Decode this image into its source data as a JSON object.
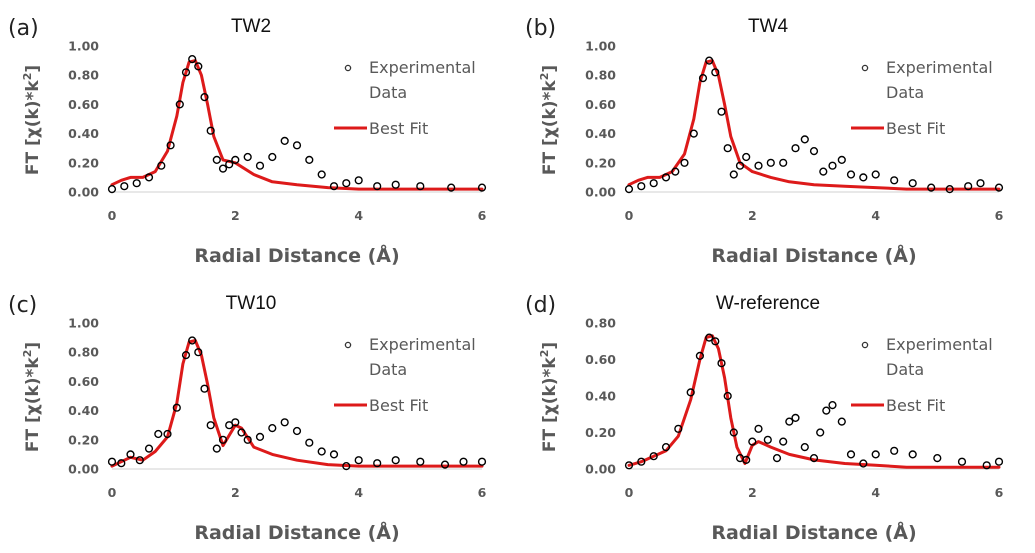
{
  "colors": {
    "experimental": "#000000",
    "fit": "#dd1a1a",
    "text": "#595959"
  },
  "chart_data": [
    {
      "type": "scatter",
      "panel_label": "(a)",
      "title": "TW2",
      "xlabel": "Radial Distance (Å)",
      "ylabel_main": "FT [χ(k)*k",
      "ylabel_sup": "2",
      "ylabel_tail": "]",
      "xlim": [
        0,
        6
      ],
      "ylim": [
        0,
        1.0
      ],
      "xticks": [
        "0",
        "2",
        "4",
        "6"
      ],
      "yticks": [
        "0.00",
        "0.20",
        "0.40",
        "0.60",
        "0.80",
        "1.00"
      ],
      "legend": {
        "experimental": [
          "Experimental",
          "Data"
        ],
        "fit": "Best Fit"
      },
      "series": [
        {
          "name": "Experimental Data",
          "style": "markers",
          "x": [
            0,
            0.2,
            0.4,
            0.6,
            0.8,
            0.95,
            1.1,
            1.2,
            1.3,
            1.4,
            1.5,
            1.6,
            1.7,
            1.8,
            1.9,
            2.0,
            2.2,
            2.4,
            2.6,
            2.8,
            3.0,
            3.2,
            3.4,
            3.6,
            3.8,
            4.0,
            4.3,
            4.6,
            5.0,
            5.5,
            6.0
          ],
          "y": [
            0.02,
            0.04,
            0.06,
            0.1,
            0.18,
            0.32,
            0.6,
            0.82,
            0.91,
            0.86,
            0.65,
            0.42,
            0.22,
            0.16,
            0.19,
            0.22,
            0.24,
            0.18,
            0.24,
            0.35,
            0.32,
            0.22,
            0.12,
            0.04,
            0.06,
            0.08,
            0.04,
            0.05,
            0.04,
            0.03,
            0.03
          ]
        },
        {
          "name": "Best Fit",
          "style": "line",
          "x": [
            0,
            0.15,
            0.3,
            0.5,
            0.7,
            0.9,
            1.05,
            1.15,
            1.25,
            1.35,
            1.45,
            1.55,
            1.65,
            1.8,
            2.0,
            2.3,
            2.6,
            3.0,
            3.5,
            4.0,
            4.5,
            5.0,
            6.0
          ],
          "y": [
            0.05,
            0.08,
            0.1,
            0.1,
            0.14,
            0.28,
            0.52,
            0.75,
            0.89,
            0.9,
            0.8,
            0.6,
            0.38,
            0.22,
            0.2,
            0.12,
            0.07,
            0.05,
            0.03,
            0.02,
            0.02,
            0.02,
            0.02
          ]
        }
      ]
    },
    {
      "type": "scatter",
      "panel_label": "(b)",
      "title": "TW4",
      "xlabel": "Radial Distance (Å)",
      "ylabel_main": "FT [χ(k)*k",
      "ylabel_sup": "2",
      "ylabel_tail": "]",
      "xlim": [
        0,
        6
      ],
      "ylim": [
        0,
        1.0
      ],
      "xticks": [
        "0",
        "2",
        "4",
        "6"
      ],
      "yticks": [
        "0.00",
        "0.20",
        "0.40",
        "0.60",
        "0.80",
        "1.00"
      ],
      "legend": {
        "experimental": [
          "Experimental",
          "Data"
        ],
        "fit": "Best Fit"
      },
      "series": [
        {
          "name": "Experimental Data",
          "style": "markers",
          "x": [
            0,
            0.2,
            0.4,
            0.6,
            0.75,
            0.9,
            1.05,
            1.2,
            1.3,
            1.4,
            1.5,
            1.6,
            1.7,
            1.8,
            1.9,
            2.1,
            2.3,
            2.5,
            2.7,
            2.85,
            3.0,
            3.15,
            3.3,
            3.45,
            3.6,
            3.8,
            4.0,
            4.3,
            4.6,
            4.9,
            5.2,
            5.5,
            5.7,
            6.0
          ],
          "y": [
            0.02,
            0.04,
            0.06,
            0.1,
            0.14,
            0.2,
            0.4,
            0.78,
            0.9,
            0.82,
            0.55,
            0.3,
            0.12,
            0.18,
            0.24,
            0.18,
            0.2,
            0.2,
            0.3,
            0.36,
            0.28,
            0.14,
            0.18,
            0.22,
            0.12,
            0.1,
            0.12,
            0.08,
            0.06,
            0.03,
            0.02,
            0.04,
            0.06,
            0.03
          ]
        },
        {
          "name": "Best Fit",
          "style": "line",
          "x": [
            0,
            0.15,
            0.3,
            0.5,
            0.7,
            0.9,
            1.05,
            1.15,
            1.25,
            1.35,
            1.45,
            1.55,
            1.65,
            1.8,
            2.0,
            2.3,
            2.6,
            3.0,
            3.5,
            4.0,
            4.5,
            5.0,
            6.0
          ],
          "y": [
            0.05,
            0.08,
            0.1,
            0.1,
            0.14,
            0.26,
            0.5,
            0.75,
            0.89,
            0.9,
            0.8,
            0.6,
            0.38,
            0.2,
            0.14,
            0.1,
            0.07,
            0.05,
            0.04,
            0.03,
            0.02,
            0.02,
            0.02
          ]
        }
      ]
    },
    {
      "type": "scatter",
      "panel_label": "(c)",
      "title": "TW10",
      "xlabel": "Radial Distance (Å)",
      "ylabel_main": "FT [χ(k)*k",
      "ylabel_sup": "2",
      "ylabel_tail": "]",
      "xlim": [
        0,
        6
      ],
      "ylim": [
        0,
        1.0
      ],
      "xticks": [
        "0",
        "2",
        "4",
        "6"
      ],
      "yticks": [
        "0.00",
        "0.20",
        "0.40",
        "0.60",
        "0.80",
        "1.00"
      ],
      "legend": {
        "experimental": [
          "Experimental",
          "Data"
        ],
        "fit": "Best Fit"
      },
      "series": [
        {
          "name": "Experimental Data",
          "style": "markers",
          "x": [
            0,
            0.15,
            0.3,
            0.45,
            0.6,
            0.75,
            0.9,
            1.05,
            1.2,
            1.3,
            1.4,
            1.5,
            1.6,
            1.7,
            1.8,
            1.9,
            2.0,
            2.1,
            2.2,
            2.4,
            2.6,
            2.8,
            3.0,
            3.2,
            3.4,
            3.6,
            3.8,
            4.0,
            4.3,
            4.6,
            5.0,
            5.4,
            5.7,
            6.0
          ],
          "y": [
            0.05,
            0.04,
            0.1,
            0.06,
            0.14,
            0.24,
            0.24,
            0.42,
            0.78,
            0.88,
            0.8,
            0.55,
            0.3,
            0.14,
            0.2,
            0.3,
            0.32,
            0.25,
            0.2,
            0.22,
            0.28,
            0.32,
            0.26,
            0.18,
            0.12,
            0.1,
            0.02,
            0.06,
            0.04,
            0.06,
            0.05,
            0.03,
            0.05,
            0.05
          ]
        },
        {
          "name": "Best Fit",
          "style": "line",
          "x": [
            0,
            0.15,
            0.3,
            0.5,
            0.7,
            0.9,
            1.05,
            1.15,
            1.25,
            1.35,
            1.45,
            1.55,
            1.65,
            1.8,
            2.0,
            2.1,
            2.3,
            2.6,
            3.0,
            3.5,
            4.0,
            4.5,
            5.0,
            6.0
          ],
          "y": [
            0.02,
            0.05,
            0.08,
            0.06,
            0.12,
            0.22,
            0.45,
            0.72,
            0.87,
            0.88,
            0.78,
            0.58,
            0.35,
            0.16,
            0.3,
            0.28,
            0.15,
            0.1,
            0.06,
            0.03,
            0.02,
            0.02,
            0.02,
            0.02
          ]
        }
      ]
    },
    {
      "type": "scatter",
      "panel_label": "(d)",
      "title": "W-reference",
      "xlabel": "Radial Distance (Å)",
      "ylabel_main": "FT [χ(k)*k",
      "ylabel_sup": "2",
      "ylabel_tail": "]",
      "xlim": [
        0,
        6
      ],
      "ylim": [
        0,
        0.8
      ],
      "xticks": [
        "0",
        "2",
        "4",
        "6"
      ],
      "yticks": [
        "0.00",
        "0.20",
        "0.40",
        "0.60",
        "0.80"
      ],
      "legend": {
        "experimental": [
          "Experimental",
          "Data"
        ],
        "fit": "Best Fit"
      },
      "series": [
        {
          "name": "Experimental Data",
          "style": "markers",
          "x": [
            0,
            0.2,
            0.4,
            0.6,
            0.8,
            1.0,
            1.15,
            1.3,
            1.4,
            1.5,
            1.6,
            1.7,
            1.8,
            1.9,
            2.0,
            2.1,
            2.25,
            2.4,
            2.5,
            2.6,
            2.7,
            2.85,
            3.0,
            3.1,
            3.2,
            3.3,
            3.45,
            3.6,
            3.8,
            4.0,
            4.3,
            4.6,
            5.0,
            5.4,
            5.8,
            6.0
          ],
          "y": [
            0.02,
            0.04,
            0.07,
            0.12,
            0.22,
            0.42,
            0.62,
            0.72,
            0.7,
            0.58,
            0.4,
            0.2,
            0.06,
            0.05,
            0.15,
            0.22,
            0.16,
            0.06,
            0.15,
            0.26,
            0.28,
            0.12,
            0.06,
            0.2,
            0.32,
            0.35,
            0.26,
            0.08,
            0.03,
            0.08,
            0.1,
            0.08,
            0.06,
            0.04,
            0.02,
            0.04
          ]
        },
        {
          "name": "Best Fit",
          "style": "line",
          "x": [
            0,
            0.2,
            0.4,
            0.6,
            0.8,
            1.0,
            1.15,
            1.25,
            1.35,
            1.45,
            1.55,
            1.65,
            1.75,
            1.88,
            2.0,
            2.1,
            2.3,
            2.6,
            3.0,
            3.5,
            4.0,
            4.5,
            5.0,
            6.0
          ],
          "y": [
            0.02,
            0.04,
            0.07,
            0.1,
            0.18,
            0.38,
            0.6,
            0.72,
            0.73,
            0.66,
            0.5,
            0.28,
            0.12,
            0.03,
            0.13,
            0.15,
            0.12,
            0.08,
            0.05,
            0.03,
            0.02,
            0.01,
            0.01,
            0.01
          ]
        }
      ]
    }
  ]
}
